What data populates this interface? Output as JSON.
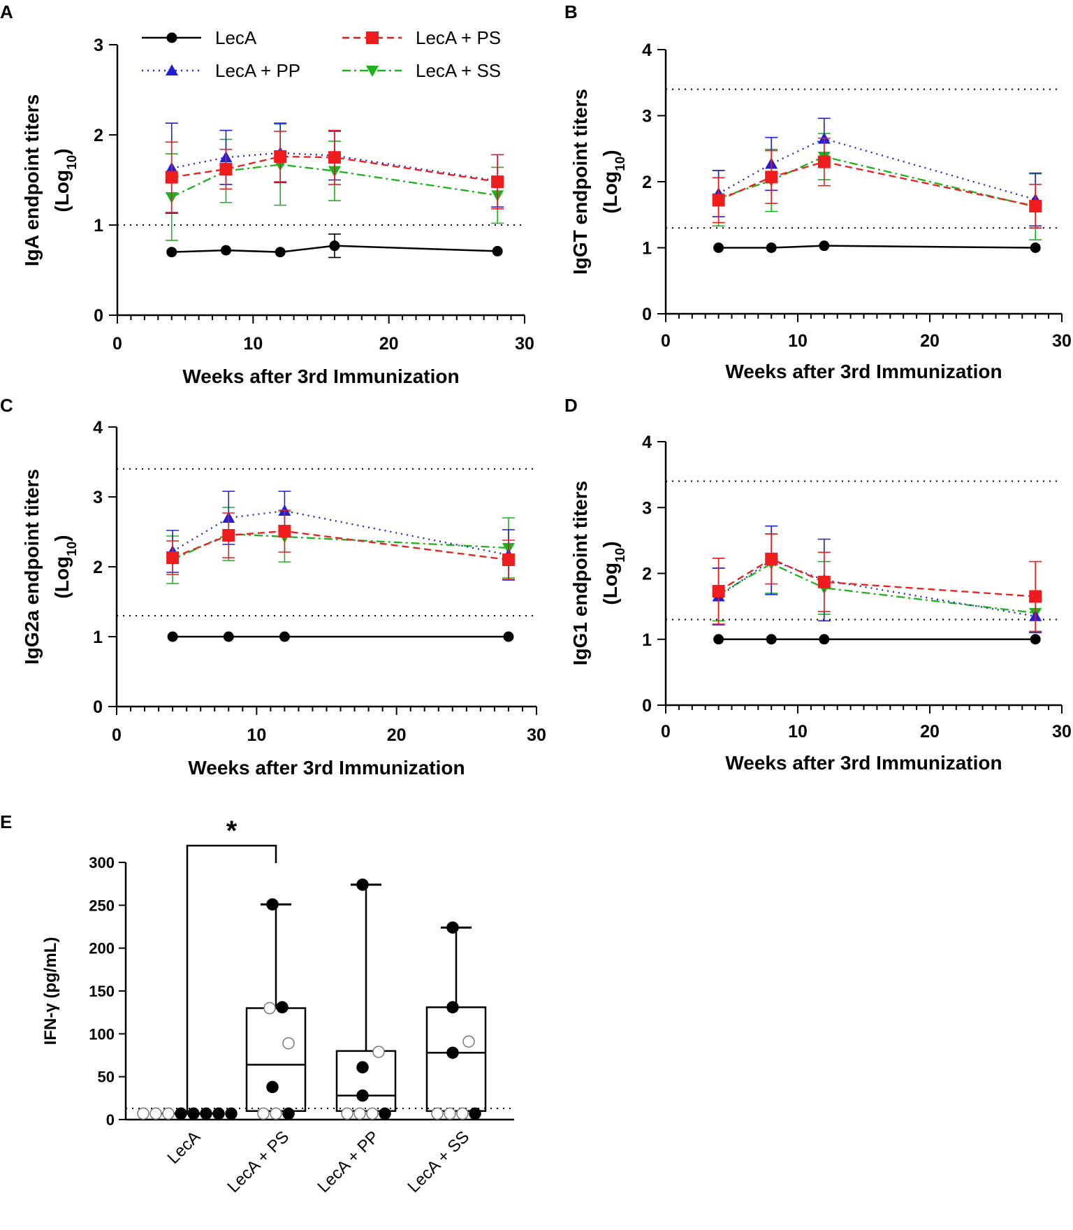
{
  "figure": {
    "legend": [
      {
        "label": "LecA",
        "series_key": "lecA"
      },
      {
        "label": "LecA + PS",
        "series_key": "ps"
      },
      {
        "label": "LecA + PP",
        "series_key": "pp"
      },
      {
        "label": "LecA + SS",
        "series_key": "ss"
      }
    ]
  },
  "chart_data": [
    {
      "panel": "A",
      "type": "line",
      "xlabel": "Weeks after 3rd Immunization",
      "ylabel_main": "IgA endpoint titers",
      "ylabel_sub_prefix": "(Log",
      "ylabel_sub_base": "10",
      "ylabel_sub_suffix": ")",
      "xlim": [
        0,
        30
      ],
      "ylim": [
        0,
        3
      ],
      "x_ticks": [
        0,
        10,
        20,
        30
      ],
      "y_ticks": [
        0,
        1,
        2,
        3
      ],
      "reference_lines": [
        1.0
      ],
      "x": [
        4,
        8,
        12,
        16,
        28
      ],
      "series": [
        {
          "key": "lecA",
          "name": "LecA",
          "color": "#000000",
          "style": "solid",
          "marker": "circle",
          "values": [
            0.7,
            0.72,
            0.7,
            0.77,
            0.71
          ],
          "errors": [
            0,
            0,
            0,
            0.13,
            0
          ]
        },
        {
          "key": "ps",
          "name": "LecA + PS",
          "color": "#ee1c1c",
          "style": "dashed",
          "marker": "square",
          "values": [
            1.53,
            1.62,
            1.76,
            1.75,
            1.48
          ],
          "errors": [
            0.39,
            0.22,
            0.28,
            0.3,
            0.3
          ]
        },
        {
          "key": "pp",
          "name": "LecA + PP",
          "color": "#1f1fd6",
          "style": "dotted",
          "marker": "triangle-up",
          "values": [
            1.63,
            1.75,
            1.8,
            1.77,
            1.49
          ],
          "errors": [
            0.5,
            0.3,
            0.33,
            0.27,
            0.29
          ]
        },
        {
          "key": "ss",
          "name": "LecA + SS",
          "color": "#1db21d",
          "style": "dashdot",
          "marker": "triangle-down",
          "values": [
            1.31,
            1.6,
            1.67,
            1.6,
            1.33
          ],
          "errors": [
            0.48,
            0.35,
            0.45,
            0.33,
            0.31
          ]
        }
      ]
    },
    {
      "panel": "B",
      "type": "line",
      "xlabel": "Weeks after 3rd Immunization",
      "ylabel_main": "IgGT endpoint titers",
      "ylabel_sub_prefix": "(Log",
      "ylabel_sub_base": "10",
      "ylabel_sub_suffix": ")",
      "xlim": [
        0,
        30
      ],
      "ylim": [
        0,
        4
      ],
      "x_ticks": [
        0,
        10,
        20,
        30
      ],
      "y_ticks": [
        0,
        1,
        2,
        3,
        4
      ],
      "reference_lines": [
        1.3,
        3.4
      ],
      "x": [
        4,
        8,
        12,
        28
      ],
      "series": [
        {
          "key": "lecA",
          "name": "LecA",
          "color": "#000000",
          "style": "solid",
          "marker": "circle",
          "values": [
            1.0,
            1.0,
            1.03,
            1.0
          ],
          "errors": [
            0,
            0,
            0,
            0
          ]
        },
        {
          "key": "ps",
          "name": "LecA + PS",
          "color": "#ee1c1c",
          "style": "dashed",
          "marker": "square",
          "values": [
            1.72,
            2.07,
            2.3,
            1.63
          ],
          "errors": [
            0.34,
            0.4,
            0.36,
            0.33
          ]
        },
        {
          "key": "pp",
          "name": "LecA + PP",
          "color": "#1f1fd6",
          "style": "dotted",
          "marker": "triangle-up",
          "values": [
            1.82,
            2.27,
            2.65,
            1.73
          ],
          "errors": [
            0.35,
            0.4,
            0.31,
            0.4
          ]
        },
        {
          "key": "ss",
          "name": "LecA + SS",
          "color": "#1db21d",
          "style": "dashdot",
          "marker": "triangle-down",
          "values": [
            1.75,
            2.02,
            2.38,
            1.62
          ],
          "errors": [
            0.42,
            0.47,
            0.35,
            0.5
          ]
        }
      ]
    },
    {
      "panel": "C",
      "type": "line",
      "xlabel": "Weeks after 3rd Immunization",
      "ylabel_main": "IgG2a endpoint titers",
      "ylabel_sub_prefix": "(Log",
      "ylabel_sub_base": "10",
      "ylabel_sub_suffix": ")",
      "xlim": [
        0,
        30
      ],
      "ylim": [
        0,
        4
      ],
      "x_ticks": [
        0,
        10,
        20,
        30
      ],
      "y_ticks": [
        0,
        1,
        2,
        3,
        4
      ],
      "reference_lines": [
        1.3,
        3.4
      ],
      "x": [
        4,
        8,
        12,
        28
      ],
      "series": [
        {
          "key": "lecA",
          "name": "LecA",
          "color": "#000000",
          "style": "solid",
          "marker": "circle",
          "values": [
            1.0,
            1.0,
            1.0,
            1.0
          ],
          "errors": [
            0,
            0,
            0,
            0
          ]
        },
        {
          "key": "ps",
          "name": "LecA + PS",
          "color": "#ee1c1c",
          "style": "dashed",
          "marker": "square",
          "values": [
            2.13,
            2.45,
            2.51,
            2.1
          ],
          "errors": [
            0.24,
            0.32,
            0.3,
            0.28
          ]
        },
        {
          "key": "pp",
          "name": "LecA + PP",
          "color": "#1f1fd6",
          "style": "dotted",
          "marker": "triangle-up",
          "values": [
            2.22,
            2.7,
            2.8,
            2.17
          ],
          "errors": [
            0.3,
            0.38,
            0.28,
            0.36
          ]
        },
        {
          "key": "ss",
          "name": "LecA + SS",
          "color": "#1db21d",
          "style": "dashdot",
          "marker": "triangle-down",
          "values": [
            2.1,
            2.47,
            2.43,
            2.27
          ],
          "errors": [
            0.34,
            0.38,
            0.36,
            0.43
          ]
        }
      ]
    },
    {
      "panel": "D",
      "type": "line",
      "xlabel": "Weeks after 3rd Immunization",
      "ylabel_main": "IgG1 endpoint titers",
      "ylabel_sub_prefix": "(Log",
      "ylabel_sub_base": "10",
      "ylabel_sub_suffix": ")",
      "xlim": [
        0,
        30
      ],
      "ylim": [
        0,
        4
      ],
      "x_ticks": [
        0,
        10,
        20,
        30
      ],
      "y_ticks": [
        0,
        1,
        2,
        3,
        4
      ],
      "reference_lines": [
        1.3,
        3.4
      ],
      "x": [
        4,
        8,
        12,
        28
      ],
      "series": [
        {
          "key": "lecA",
          "name": "LecA",
          "color": "#000000",
          "style": "solid",
          "marker": "circle",
          "values": [
            1.0,
            1.0,
            1.0,
            1.0
          ],
          "errors": [
            0,
            0,
            0,
            0
          ]
        },
        {
          "key": "ps",
          "name": "LecA + PS",
          "color": "#ee1c1c",
          "style": "dashed",
          "marker": "square",
          "values": [
            1.73,
            2.22,
            1.87,
            1.65
          ],
          "errors": [
            0.5,
            0.38,
            0.45,
            0.53
          ]
        },
        {
          "key": "pp",
          "name": "LecA + PP",
          "color": "#1f1fd6",
          "style": "dotted",
          "marker": "triangle-up",
          "values": [
            1.65,
            2.2,
            1.9,
            1.35
          ],
          "errors": [
            0.43,
            0.52,
            0.62,
            0.25
          ]
        },
        {
          "key": "ss",
          "name": "LecA + SS",
          "color": "#1db21d",
          "style": "dashdot",
          "marker": "triangle-down",
          "values": [
            1.68,
            2.15,
            1.78,
            1.4
          ],
          "errors": [
            0.4,
            0.45,
            0.4,
            0.28
          ]
        }
      ]
    },
    {
      "panel": "E",
      "type": "box",
      "ylabel": "IFN-γ (pg/mL)",
      "ylim": [
        0,
        300
      ],
      "y_ticks": [
        0,
        50,
        100,
        150,
        200,
        250,
        300
      ],
      "reference_lines": [
        13
      ],
      "significance": {
        "from": 0,
        "to": 1,
        "label": "*"
      },
      "groups": [
        {
          "label": "LecA",
          "min": 7,
          "q1": 7,
          "median": 7,
          "q3": 7,
          "max": 7,
          "filled": [
            7,
            7,
            7,
            7,
            7
          ],
          "open": [
            7,
            7,
            7
          ]
        },
        {
          "label": "LecA + PS",
          "min": 7,
          "q1": 10,
          "median": 64,
          "q3": 130,
          "max": 251,
          "filled": [
            251,
            131,
            38,
            7
          ],
          "open": [
            130,
            89,
            7,
            7
          ]
        },
        {
          "label": "LecA + PP",
          "min": 7,
          "q1": 10,
          "median": 28,
          "q3": 80,
          "max": 274,
          "filled": [
            274,
            61,
            28,
            7
          ],
          "open": [
            79,
            7,
            7,
            7
          ]
        },
        {
          "label": "LecA + SS",
          "min": 7,
          "q1": 10,
          "median": 78,
          "q3": 131,
          "max": 224,
          "filled": [
            224,
            131,
            78,
            7
          ],
          "open": [
            91,
            7,
            7,
            7
          ]
        }
      ]
    }
  ]
}
